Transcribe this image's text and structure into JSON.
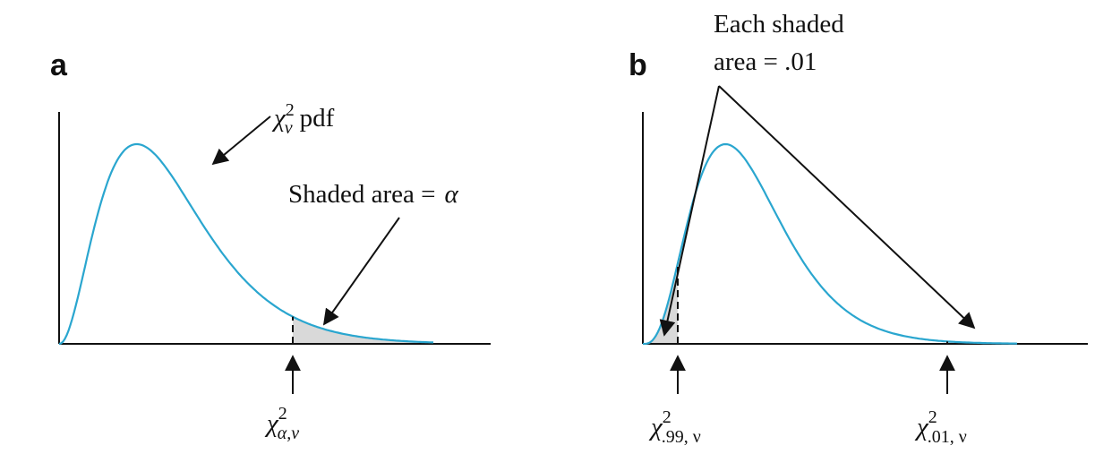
{
  "colors": {
    "curve": "#2aa6cf",
    "shade": "#d9d9d9",
    "ink": "#111111"
  },
  "panel_a": {
    "letter": "a",
    "curve_label_symbol": "χ",
    "curve_label_sub": "ν",
    "curve_label_sup": "2",
    "curve_label_suffix": "pdf",
    "shaded_label": "Shaded area =",
    "shaded_symbol": "α",
    "critical_symbol": "χ",
    "critical_sup": "2",
    "critical_sub": "α,ν"
  },
  "panel_b": {
    "letter": "b",
    "note_line1": "Each shaded",
    "note_line2": "area = .01",
    "left_symbol": "χ",
    "left_sup": "2",
    "left_sub": ".99, ν",
    "right_symbol": "χ",
    "right_sup": "2",
    "right_sub": ".01, ν"
  }
}
